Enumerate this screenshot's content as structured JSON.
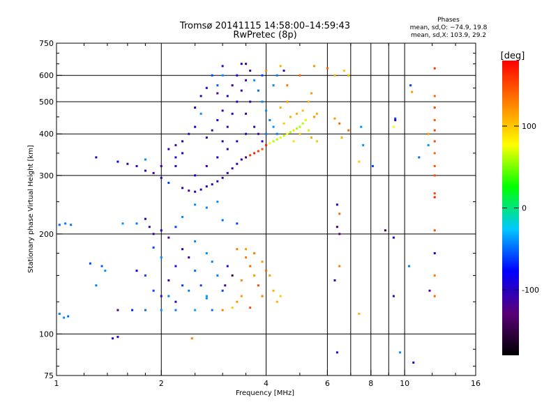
{
  "chart_data": {
    "type": "scatter",
    "title": "Tromsø 20141115 14:58:00–14:59:43",
    "subtitle": "RwPretec (8p)",
    "xlabel": "Frequency [MHz]",
    "ylabel": "Stationary phase Virtual Height [km]",
    "x_scale": "log",
    "y_scale": "log",
    "xlim": [
      1,
      16
    ],
    "ylim": [
      75,
      750
    ],
    "xticks": [
      1,
      2,
      4,
      6,
      8,
      10,
      16
    ],
    "yticks": [
      75,
      100,
      200,
      300,
      400,
      500,
      600,
      750
    ],
    "x_grid_lines": [
      2,
      4,
      6,
      7,
      8,
      9,
      10
    ],
    "y_grid_lines": [
      100,
      200,
      300,
      400,
      500,
      600
    ],
    "grid": true,
    "phase_box": {
      "title": "Phases",
      "line_o": "mean, sd,O: −74.9, 19.8",
      "line_x": "mean, sd,X: 103.9, 29.2"
    },
    "colorbar": {
      "label": "[deg]",
      "range": [
        -180,
        180
      ],
      "ticks": [
        100,
        0,
        -100
      ],
      "colormap": [
        "#000000",
        "#5a0078",
        "#0000ff",
        "#00c8ff",
        "#00ff00",
        "#ffff00",
        "#ff8000",
        "#ff0000"
      ]
    },
    "series": [
      {
        "points": [
          [
            1.02,
            115,
            -45
          ],
          [
            1.05,
            112,
            -40
          ],
          [
            1.08,
            113,
            -50
          ],
          [
            1.02,
            213,
            -50
          ],
          [
            1.06,
            215,
            -45
          ],
          [
            1.1,
            213,
            -50
          ],
          [
            1.25,
            163,
            -60
          ],
          [
            1.35,
            160,
            -55
          ],
          [
            1.38,
            155,
            -40
          ],
          [
            1.3,
            140,
            -45
          ],
          [
            1.45,
            97,
            -100
          ],
          [
            1.5,
            98,
            -90
          ],
          [
            1.5,
            118,
            -120
          ],
          [
            1.65,
            118,
            -70
          ],
          [
            1.8,
            118,
            -50
          ],
          [
            2.0,
            118,
            -40
          ],
          [
            2.2,
            118,
            -45
          ],
          [
            2.5,
            118,
            -35
          ],
          [
            2.8,
            118,
            -50
          ],
          [
            3.0,
            118,
            130
          ],
          [
            2.45,
            97,
            130
          ],
          [
            1.55,
            215,
            -40
          ],
          [
            1.7,
            215,
            -45
          ],
          [
            1.8,
            222,
            -100
          ],
          [
            1.85,
            210,
            -120
          ],
          [
            1.9,
            200,
            -110
          ],
          [
            2.0,
            205,
            -100
          ],
          [
            2.1,
            195,
            -120
          ],
          [
            2.2,
            210,
            -60
          ],
          [
            2.3,
            225,
            -40
          ],
          [
            2.5,
            245,
            -40
          ],
          [
            2.7,
            240,
            -45
          ],
          [
            2.9,
            250,
            -40
          ],
          [
            3.0,
            220,
            -50
          ],
          [
            3.3,
            215,
            -60
          ],
          [
            1.7,
            155,
            -80
          ],
          [
            1.8,
            150,
            -60
          ],
          [
            1.9,
            135,
            -60
          ],
          [
            2.0,
            130,
            -100
          ],
          [
            2.1,
            145,
            -110
          ],
          [
            2.2,
            160,
            -100
          ],
          [
            2.3,
            180,
            -100
          ],
          [
            2.4,
            170,
            -110
          ],
          [
            2.5,
            155,
            -50
          ],
          [
            2.6,
            140,
            -60
          ],
          [
            2.7,
            175,
            -40
          ],
          [
            2.8,
            165,
            -45
          ],
          [
            2.9,
            150,
            -45
          ],
          [
            2.5,
            190,
            -40
          ],
          [
            2.2,
            125,
            -110
          ],
          [
            2.0,
            170,
            -40
          ],
          [
            1.9,
            182,
            -60
          ],
          [
            2.3,
            140,
            -60
          ],
          [
            2.1,
            130,
            -45
          ],
          [
            2.7,
            130,
            -40
          ],
          [
            3.05,
            140,
            -110
          ],
          [
            3.1,
            160,
            -100
          ],
          [
            3.2,
            150,
            -150
          ],
          [
            3.3,
            125,
            120
          ],
          [
            3.4,
            130,
            120
          ],
          [
            3.5,
            170,
            130
          ],
          [
            3.6,
            160,
            140
          ],
          [
            3.7,
            150,
            120
          ],
          [
            3.8,
            140,
            150
          ],
          [
            3.9,
            130,
            130
          ],
          [
            4.0,
            155,
            140
          ],
          [
            4.2,
            135,
            110
          ],
          [
            4.4,
            130,
            100
          ],
          [
            3.3,
            180,
            130
          ],
          [
            3.5,
            180,
            120
          ],
          [
            3.7,
            175,
            130
          ],
          [
            3.9,
            165,
            120
          ],
          [
            4.1,
            150,
            115
          ],
          [
            3.4,
            145,
            125
          ],
          [
            4.3,
            125,
            110
          ],
          [
            3.2,
            120,
            100
          ],
          [
            3.6,
            120,
            150
          ],
          [
            2.7,
            128,
            -40
          ],
          [
            2.4,
            135,
            -45
          ],
          [
            3.0,
            135,
            -60
          ],
          [
            6.3,
            145,
            -100
          ],
          [
            6.5,
            160,
            130
          ],
          [
            6.4,
            88,
            -100
          ],
          [
            6.4,
            210,
            -140
          ],
          [
            6.5,
            200,
            -130
          ],
          [
            7.4,
            115,
            110
          ],
          [
            8.8,
            205,
            -150
          ],
          [
            9.3,
            195,
            -80
          ],
          [
            9.3,
            130,
            -100
          ],
          [
            9.7,
            88,
            -40
          ],
          [
            10.3,
            160,
            -45
          ],
          [
            10.6,
            82,
            -100
          ],
          [
            11.8,
            135,
            -120
          ],
          [
            12.2,
            130,
            140
          ],
          [
            12.2,
            150,
            130
          ],
          [
            12.2,
            175,
            -100
          ],
          [
            12.2,
            205,
            150
          ],
          [
            1.3,
            340,
            -100
          ],
          [
            1.5,
            330,
            -80
          ],
          [
            1.6,
            325,
            -110
          ],
          [
            1.7,
            320,
            -100
          ],
          [
            1.8,
            335,
            -40
          ],
          [
            1.8,
            310,
            -100
          ],
          [
            1.9,
            305,
            -110
          ],
          [
            2.0,
            295,
            -100
          ],
          [
            2.1,
            285,
            -60
          ],
          [
            2.2,
            320,
            -100
          ],
          [
            2.3,
            350,
            -90
          ],
          [
            2.3,
            275,
            -110
          ],
          [
            2.4,
            270,
            -120
          ],
          [
            2.5,
            268,
            -110
          ],
          [
            2.6,
            272,
            -105
          ],
          [
            2.7,
            278,
            -110
          ],
          [
            2.8,
            282,
            -100
          ],
          [
            2.9,
            288,
            -105
          ],
          [
            3.0,
            295,
            -110
          ],
          [
            3.1,
            305,
            -100
          ],
          [
            3.2,
            315,
            -105
          ],
          [
            3.3,
            325,
            -110
          ],
          [
            3.4,
            335,
            -90
          ],
          [
            3.5,
            340,
            -120
          ],
          [
            3.6,
            345,
            160
          ],
          [
            3.7,
            350,
            170
          ],
          [
            3.8,
            355,
            160
          ],
          [
            3.9,
            360,
            150
          ],
          [
            4.0,
            370,
            165
          ],
          [
            4.1,
            375,
            80
          ],
          [
            4.2,
            380,
            60
          ],
          [
            4.3,
            385,
            60
          ],
          [
            4.4,
            390,
            70
          ],
          [
            4.5,
            395,
            60
          ],
          [
            4.6,
            400,
            80
          ],
          [
            4.7,
            405,
            60
          ],
          [
            4.8,
            410,
            90
          ],
          [
            4.9,
            415,
            60
          ],
          [
            5.0,
            420,
            60
          ],
          [
            5.1,
            430,
            60
          ],
          [
            5.2,
            440,
            70
          ],
          [
            4.5,
            430,
            100
          ],
          [
            4.7,
            450,
            110
          ],
          [
            4.9,
            460,
            110
          ],
          [
            5.1,
            470,
            105
          ],
          [
            5.3,
            500,
            110
          ],
          [
            5.4,
            530,
            120
          ],
          [
            4.4,
            480,
            110
          ],
          [
            4.6,
            500,
            120
          ],
          [
            4.2,
            560,
            -40
          ],
          [
            3.9,
            600,
            -60
          ],
          [
            4.0,
            620,
            120
          ],
          [
            4.4,
            640,
            110
          ],
          [
            4.6,
            560,
            130
          ],
          [
            5.0,
            600,
            140
          ],
          [
            5.5,
            640,
            120
          ],
          [
            5.6,
            380,
            100
          ],
          [
            5.4,
            390,
            110
          ],
          [
            5.6,
            460,
            110
          ],
          [
            6.0,
            630,
            140
          ],
          [
            6.3,
            600,
            110
          ],
          [
            6.7,
            620,
            100
          ],
          [
            6.9,
            600,
            110
          ],
          [
            5.5,
            450,
            120
          ],
          [
            5.3,
            410,
            90
          ],
          [
            3.0,
            380,
            -100
          ],
          [
            3.1,
            420,
            -110
          ],
          [
            3.2,
            460,
            -100
          ],
          [
            3.3,
            500,
            -105
          ],
          [
            3.4,
            540,
            -110
          ],
          [
            3.5,
            580,
            -100
          ],
          [
            3.6,
            620,
            -110
          ],
          [
            3.4,
            650,
            -100
          ],
          [
            3.3,
            600,
            -100
          ],
          [
            3.2,
            560,
            -110
          ],
          [
            3.1,
            520,
            -100
          ],
          [
            3.0,
            470,
            -110
          ],
          [
            2.9,
            440,
            -100
          ],
          [
            2.8,
            410,
            -110
          ],
          [
            2.7,
            390,
            -100
          ],
          [
            2.6,
            460,
            -40
          ],
          [
            2.5,
            420,
            -100
          ],
          [
            2.4,
            400,
            -110
          ],
          [
            2.3,
            380,
            -100
          ],
          [
            2.2,
            370,
            -110
          ],
          [
            2.5,
            480,
            -100
          ],
          [
            2.6,
            520,
            -100
          ],
          [
            2.7,
            550,
            -100
          ],
          [
            2.8,
            600,
            -60
          ],
          [
            2.9,
            560,
            -50
          ],
          [
            3.0,
            600,
            -40
          ],
          [
            3.7,
            580,
            -40
          ],
          [
            3.8,
            540,
            -50
          ],
          [
            3.9,
            500,
            -45
          ],
          [
            4.0,
            470,
            -40
          ],
          [
            4.1,
            440,
            -45
          ],
          [
            4.2,
            420,
            -40
          ],
          [
            4.3,
            400,
            -45
          ],
          [
            3.5,
            460,
            -110
          ],
          [
            3.6,
            500,
            -105
          ],
          [
            3.7,
            420,
            -100
          ],
          [
            3.8,
            400,
            -110
          ],
          [
            3.9,
            380,
            -100
          ],
          [
            4.0,
            400,
            -45
          ],
          [
            4.3,
            600,
            -45
          ],
          [
            4.5,
            620,
            -100
          ],
          [
            2.1,
            360,
            -110
          ],
          [
            2.2,
            340,
            -100
          ],
          [
            2.0,
            320,
            -110
          ],
          [
            2.5,
            300,
            -100
          ],
          [
            2.7,
            320,
            -110
          ],
          [
            2.9,
            340,
            -100
          ],
          [
            3.1,
            360,
            -110
          ],
          [
            3.3,
            380,
            -100
          ],
          [
            3.5,
            400,
            -100
          ],
          [
            2.9,
            530,
            -120
          ],
          [
            3.0,
            640,
            -100
          ],
          [
            3.5,
            650,
            -110
          ],
          [
            4.8,
            380,
            90
          ],
          [
            5.0,
            400,
            100
          ],
          [
            6.3,
            445,
            120
          ],
          [
            6.5,
            430,
            140
          ],
          [
            6.6,
            390,
            110
          ],
          [
            6.9,
            410,
            140
          ],
          [
            7.5,
            420,
            -40
          ],
          [
            7.4,
            330,
            100
          ],
          [
            7.6,
            370,
            -40
          ],
          [
            8.1,
            320,
            -60
          ],
          [
            9.4,
            445,
            -60
          ],
          [
            9.4,
            440,
            -100
          ],
          [
            9.3,
            420,
            80
          ],
          [
            10.4,
            560,
            -60
          ],
          [
            10.5,
            535,
            120
          ],
          [
            11.0,
            340,
            -50
          ],
          [
            11.7,
            370,
            -40
          ],
          [
            11.7,
            400,
            120
          ],
          [
            12.2,
            300,
            150
          ],
          [
            12.2,
            320,
            145
          ],
          [
            12.2,
            350,
            140
          ],
          [
            12.2,
            380,
            150
          ],
          [
            12.2,
            410,
            155
          ],
          [
            12.2,
            440,
            145
          ],
          [
            12.2,
            480,
            150
          ],
          [
            12.2,
            520,
            140
          ],
          [
            12.2,
            630,
            160
          ],
          [
            12.2,
            265,
            150
          ],
          [
            12.2,
            258,
            170
          ],
          [
            6.4,
            245,
            -100
          ],
          [
            6.5,
            230,
            140
          ]
        ]
      }
    ]
  }
}
